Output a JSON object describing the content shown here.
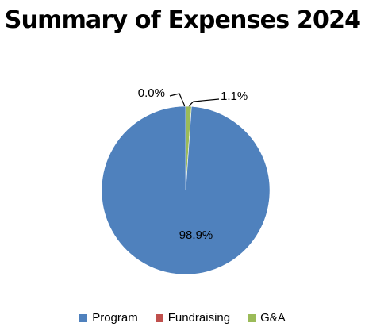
{
  "chart_data": {
    "type": "pie",
    "title": "Summary of Expenses 2024",
    "slices": [
      {
        "name": "Program",
        "value": 98.9,
        "label": "98.9%",
        "color": "#4F81BD"
      },
      {
        "name": "Fundraising",
        "value": 0.0,
        "label": "0.0%",
        "color": "#C0504D"
      },
      {
        "name": "G&A",
        "value": 1.1,
        "label": "1.1%",
        "color": "#9BBB59"
      }
    ],
    "legend_position": "bottom"
  }
}
